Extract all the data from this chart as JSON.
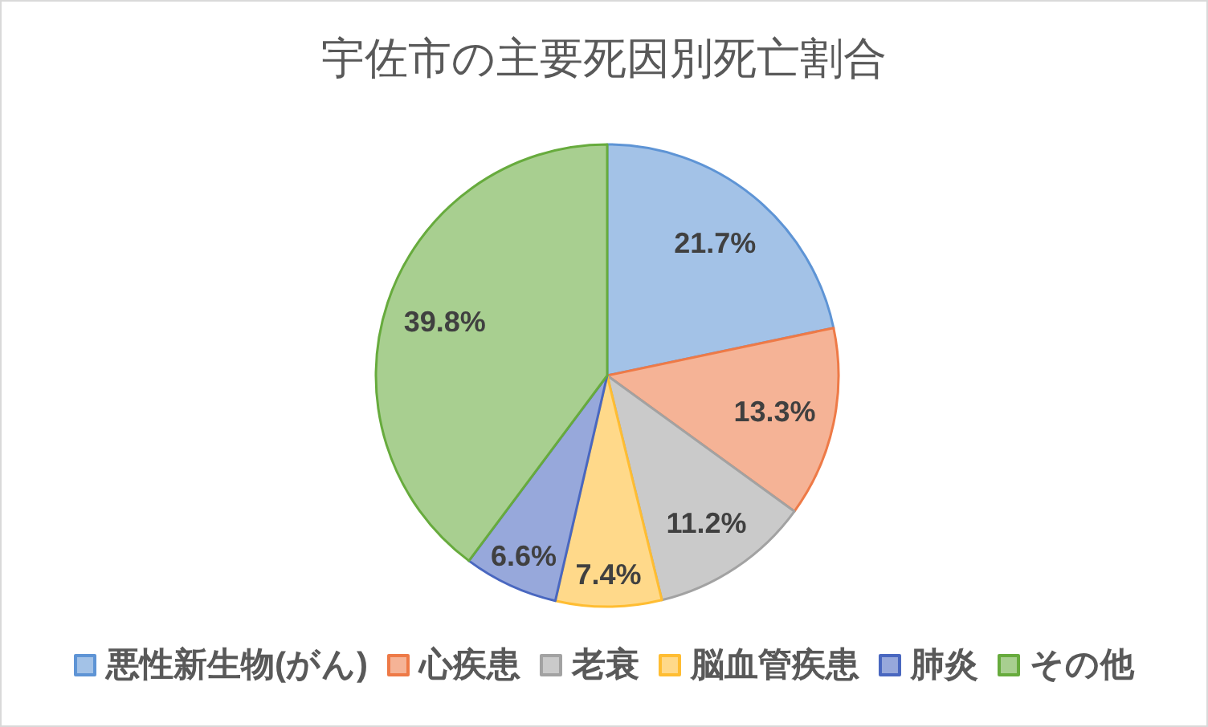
{
  "chart_data": {
    "type": "pie",
    "title": "宇佐市の主要死因別死亡割合",
    "categories": [
      "悪性新生物(がん)",
      "心疾患",
      "老衰",
      "脳血管疾患",
      "肺炎",
      "その他"
    ],
    "values": [
      21.7,
      13.3,
      11.2,
      7.4,
      6.6,
      39.8
    ],
    "colors": [
      "#a3c2e7",
      "#f5b396",
      "#cacaca",
      "#ffd98a",
      "#97a8db",
      "#a8cf90"
    ],
    "value_labels": [
      "21.7%",
      "13.3%",
      "11.2%",
      "7.4%",
      "6.6%",
      "39.8%"
    ],
    "legend": "bottom"
  }
}
